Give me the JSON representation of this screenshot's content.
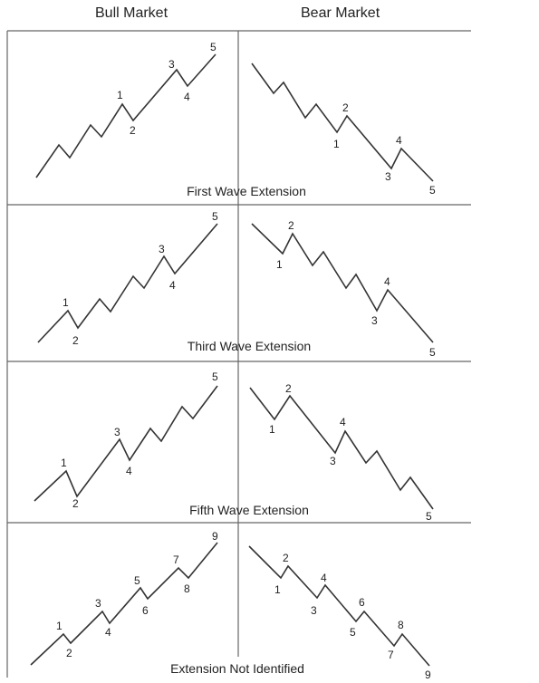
{
  "headers": {
    "bull": "Bull Market",
    "bear": "Bear Market"
  },
  "panels": [
    {
      "caption": "First Wave Extension",
      "bull_labels": [
        "1",
        "2",
        "3",
        "4",
        "5"
      ],
      "bear_labels": [
        "1",
        "2",
        "3",
        "4",
        "5"
      ]
    },
    {
      "caption": "Third Wave Extension",
      "bull_labels": [
        "1",
        "2",
        "3",
        "4",
        "5"
      ],
      "bear_labels": [
        "1",
        "2",
        "3",
        "4",
        "5"
      ]
    },
    {
      "caption": "Fifth Wave Extension",
      "bull_labels": [
        "1",
        "2",
        "3",
        "4",
        "5"
      ],
      "bear_labels": [
        "1",
        "2",
        "3",
        "4",
        "5"
      ]
    },
    {
      "caption": "Extension Not Identified",
      "bull_labels": [
        "1",
        "2",
        "3",
        "4",
        "5",
        "6",
        "7",
        "8",
        "9"
      ],
      "bear_labels": [
        "1",
        "2",
        "3",
        "4",
        "5",
        "6",
        "7",
        "8",
        "9"
      ]
    }
  ]
}
